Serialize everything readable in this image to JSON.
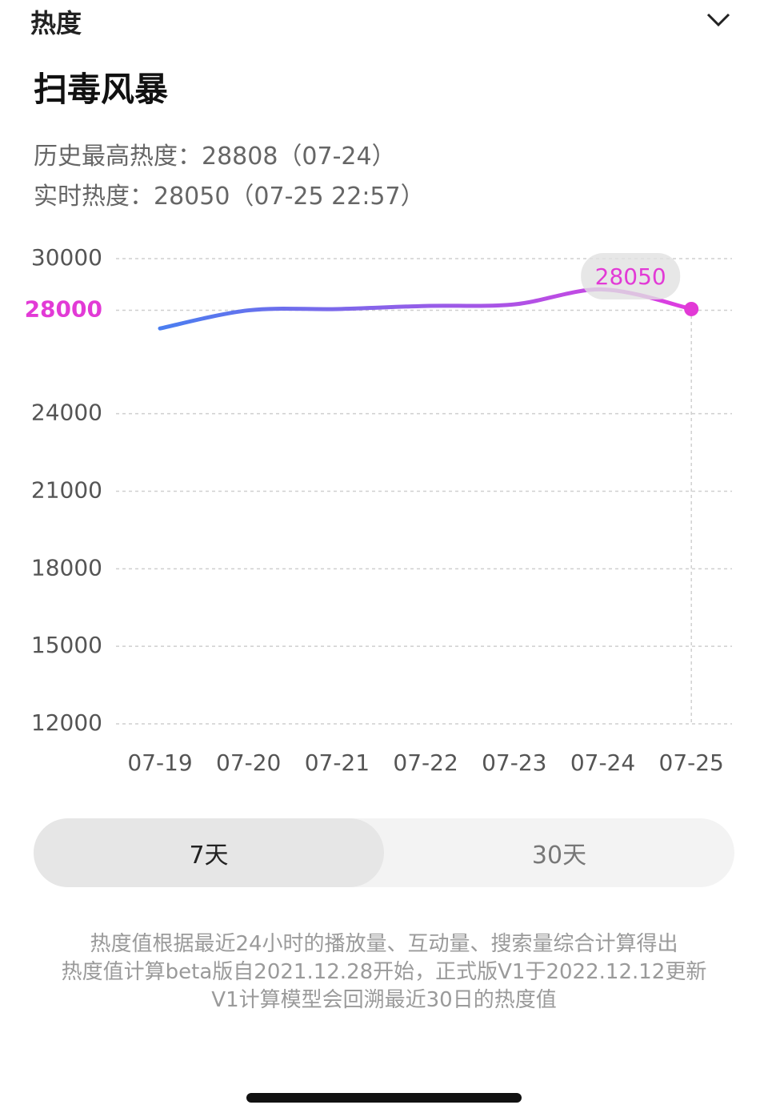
{
  "header": {
    "label": "热度"
  },
  "title": "扫毒风暴",
  "stats": {
    "peak": "历史最高热度：28808（07-24）",
    "current": "实时热度：28050（07-25 22:57）"
  },
  "chart_data": {
    "type": "line",
    "categories": [
      "07-19",
      "07-20",
      "07-21",
      "07-22",
      "07-23",
      "07-24",
      "07-25"
    ],
    "values": [
      27300,
      28000,
      28050,
      28170,
      28230,
      28808,
      28050
    ],
    "line_colors": [
      "#4a7ef0",
      "#e03ce0"
    ],
    "highlight_color": "#e23ad6",
    "ylim": [
      12000,
      30000
    ],
    "yticks": [
      12000,
      15000,
      18000,
      21000,
      24000,
      28000,
      30000
    ],
    "grid": true
  },
  "range_tabs": [
    "7天",
    "30天"
  ],
  "selected_tab": 0,
  "notes": [
    "热度值根据最近24小时的播放量、互动量、搜索量综合计算得出",
    "热度值计算beta版自2021.12.28开始，正式版V1于2022.12.12更新",
    "V1计算模型会回溯最近30日的热度值"
  ]
}
